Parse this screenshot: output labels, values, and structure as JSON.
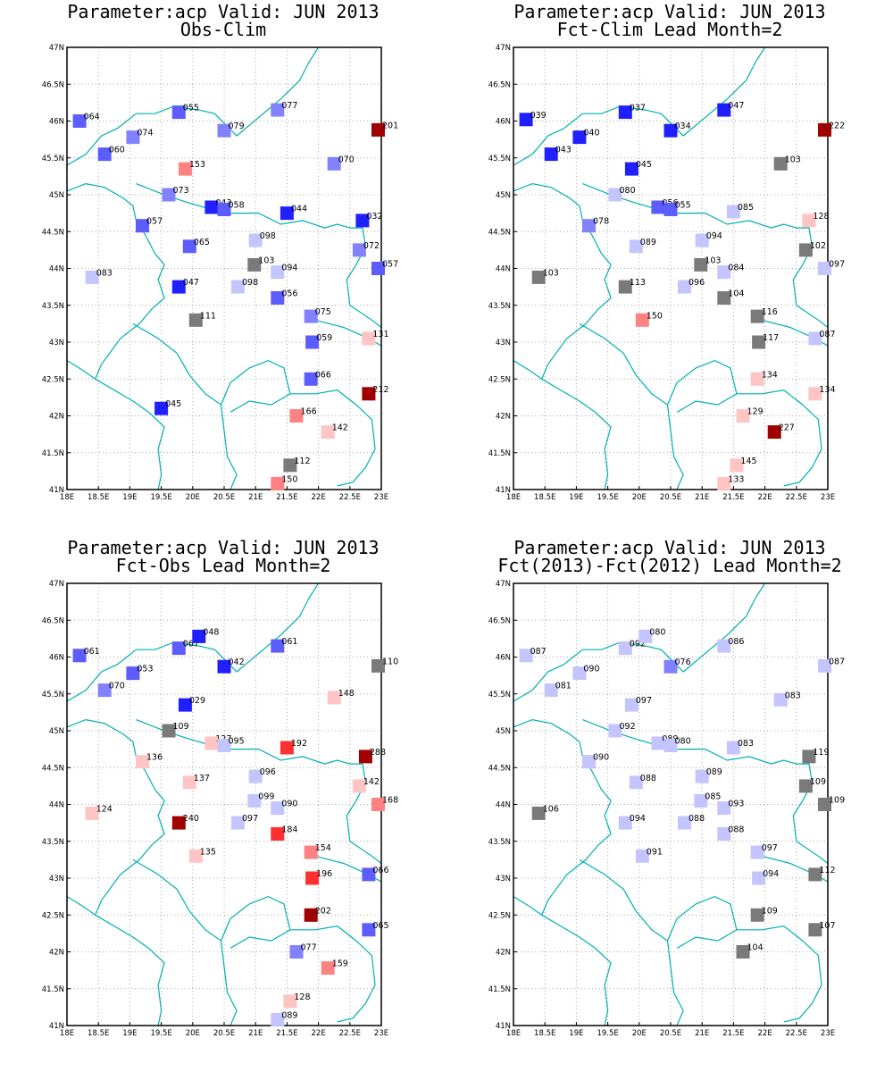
{
  "colors": {
    "border": "#00b0b0",
    "grid": "#a8a8a8",
    "gray": "#7a7a7a",
    "scale": [
      "#2020ff",
      "#5c5cff",
      "#8282ff",
      "#c4c4ff",
      "#7a7a7a",
      "#ffc4c4",
      "#ff8282",
      "#ff3030",
      "#a00000"
    ]
  },
  "axes": {
    "x_ticks": [
      "18E",
      "18.5E",
      "19E",
      "19.5E",
      "20E",
      "20.5E",
      "21E",
      "21.5E",
      "22E",
      "22.5E",
      "23E"
    ],
    "y_ticks": [
      "41N",
      "41.5N",
      "42N",
      "42.5N",
      "43N",
      "43.5N",
      "44N",
      "44.5N",
      "45N",
      "45.5N",
      "46N",
      "46.5N",
      "47N"
    ]
  },
  "panels": [
    {
      "title1": "Parameter:acp Valid: JUN 2013",
      "title2": "Obs-Clim",
      "stations": [
        {
          "lon": 18.2,
          "lat": 46.0,
          "label": "064"
        },
        {
          "lon": 18.6,
          "lat": 45.55,
          "label": "060"
        },
        {
          "lon": 19.05,
          "lat": 45.78,
          "label": "074"
        },
        {
          "lon": 19.78,
          "lat": 46.12,
          "label": "055"
        },
        {
          "lon": 20.5,
          "lat": 45.87,
          "label": "079"
        },
        {
          "lon": 21.35,
          "lat": 46.15,
          "label": "077"
        },
        {
          "lon": 22.95,
          "lat": 45.88,
          "label": "201"
        },
        {
          "lon": 19.88,
          "lat": 45.35,
          "label": "153"
        },
        {
          "lon": 22.25,
          "lat": 45.42,
          "label": "070"
        },
        {
          "lon": 19.62,
          "lat": 45.0,
          "label": "073"
        },
        {
          "lon": 20.3,
          "lat": 44.83,
          "label": "043"
        },
        {
          "lon": 20.5,
          "lat": 44.8,
          "label": "058"
        },
        {
          "lon": 21.5,
          "lat": 44.75,
          "label": "044"
        },
        {
          "lon": 22.7,
          "lat": 44.65,
          "label": "032"
        },
        {
          "lon": 19.2,
          "lat": 44.58,
          "label": "057"
        },
        {
          "lon": 19.95,
          "lat": 44.3,
          "label": "065"
        },
        {
          "lon": 21.0,
          "lat": 44.38,
          "label": "098"
        },
        {
          "lon": 22.65,
          "lat": 44.25,
          "label": "072"
        },
        {
          "lon": 22.95,
          "lat": 44.0,
          "label": "057"
        },
        {
          "lon": 18.4,
          "lat": 43.88,
          "label": "083"
        },
        {
          "lon": 20.98,
          "lat": 44.05,
          "label": "103"
        },
        {
          "lon": 21.35,
          "lat": 43.95,
          "label": "094"
        },
        {
          "lon": 19.78,
          "lat": 43.75,
          "label": "047"
        },
        {
          "lon": 20.72,
          "lat": 43.75,
          "label": "098"
        },
        {
          "lon": 21.35,
          "lat": 43.6,
          "label": "056"
        },
        {
          "lon": 20.05,
          "lat": 43.3,
          "label": "111"
        },
        {
          "lon": 21.88,
          "lat": 43.35,
          "label": "075"
        },
        {
          "lon": 21.9,
          "lat": 43.0,
          "label": "059"
        },
        {
          "lon": 22.8,
          "lat": 43.05,
          "label": "131"
        },
        {
          "lon": 21.88,
          "lat": 42.5,
          "label": "066"
        },
        {
          "lon": 22.8,
          "lat": 42.3,
          "label": "212"
        },
        {
          "lon": 19.5,
          "lat": 42.1,
          "label": "045"
        },
        {
          "lon": 21.65,
          "lat": 42.0,
          "label": "166"
        },
        {
          "lon": 22.15,
          "lat": 41.78,
          "label": "142"
        },
        {
          "lon": 21.55,
          "lat": 41.33,
          "label": "112"
        },
        {
          "lon": 21.35,
          "lat": 41.08,
          "label": "150"
        }
      ]
    },
    {
      "title1": "Parameter:acp Valid: JUN 2013",
      "title2": "Fct-Clim Lead Month=2",
      "stations": [
        {
          "lon": 18.2,
          "lat": 46.02,
          "label": "039"
        },
        {
          "lon": 18.6,
          "lat": 45.55,
          "label": "043"
        },
        {
          "lon": 19.05,
          "lat": 45.78,
          "label": "040"
        },
        {
          "lon": 19.78,
          "lat": 46.12,
          "label": "037"
        },
        {
          "lon": 20.5,
          "lat": 45.87,
          "label": "034"
        },
        {
          "lon": 21.35,
          "lat": 46.15,
          "label": "047"
        },
        {
          "lon": 22.95,
          "lat": 45.88,
          "label": "222"
        },
        {
          "lon": 19.88,
          "lat": 45.35,
          "label": "045"
        },
        {
          "lon": 22.25,
          "lat": 45.42,
          "label": "103"
        },
        {
          "lon": 19.62,
          "lat": 45.0,
          "label": "080"
        },
        {
          "lon": 20.3,
          "lat": 44.83,
          "label": "056"
        },
        {
          "lon": 20.5,
          "lat": 44.8,
          "label": "055"
        },
        {
          "lon": 21.5,
          "lat": 44.77,
          "label": "085"
        },
        {
          "lon": 22.7,
          "lat": 44.65,
          "label": "128"
        },
        {
          "lon": 19.2,
          "lat": 44.58,
          "label": "078"
        },
        {
          "lon": 19.95,
          "lat": 44.3,
          "label": "089"
        },
        {
          "lon": 21.0,
          "lat": 44.38,
          "label": "094"
        },
        {
          "lon": 22.65,
          "lat": 44.25,
          "label": "102"
        },
        {
          "lon": 22.95,
          "lat": 44.0,
          "label": "097"
        },
        {
          "lon": 18.4,
          "lat": 43.88,
          "label": "103"
        },
        {
          "lon": 20.98,
          "lat": 44.05,
          "label": "103"
        },
        {
          "lon": 21.35,
          "lat": 43.95,
          "label": "084"
        },
        {
          "lon": 19.78,
          "lat": 43.75,
          "label": "113"
        },
        {
          "lon": 20.72,
          "lat": 43.75,
          "label": "096"
        },
        {
          "lon": 21.35,
          "lat": 43.6,
          "label": "104"
        },
        {
          "lon": 20.05,
          "lat": 43.3,
          "label": "150"
        },
        {
          "lon": 21.88,
          "lat": 43.35,
          "label": "116"
        },
        {
          "lon": 21.9,
          "lat": 43.0,
          "label": "117"
        },
        {
          "lon": 22.8,
          "lat": 43.05,
          "label": "087"
        },
        {
          "lon": 21.88,
          "lat": 42.5,
          "label": "134"
        },
        {
          "lon": 22.8,
          "lat": 42.3,
          "label": "134"
        },
        {
          "lon": 21.65,
          "lat": 42.0,
          "label": "129"
        },
        {
          "lon": 22.15,
          "lat": 41.78,
          "label": "227"
        },
        {
          "lon": 21.55,
          "lat": 41.33,
          "label": "145"
        },
        {
          "lon": 21.35,
          "lat": 41.08,
          "label": "133"
        }
      ]
    },
    {
      "title1": "Parameter:acp Valid: JUN 2013",
      "title2": "Fct-Obs Lead Month=2",
      "stations": [
        {
          "lon": 18.2,
          "lat": 46.02,
          "label": "061"
        },
        {
          "lon": 18.6,
          "lat": 45.55,
          "label": "070"
        },
        {
          "lon": 19.05,
          "lat": 45.78,
          "label": "053"
        },
        {
          "lon": 19.78,
          "lat": 46.12,
          "label": "067"
        },
        {
          "lon": 20.1,
          "lat": 46.28,
          "label": "048"
        },
        {
          "lon": 20.5,
          "lat": 45.87,
          "label": "042"
        },
        {
          "lon": 21.35,
          "lat": 46.15,
          "label": "061"
        },
        {
          "lon": 22.95,
          "lat": 45.88,
          "label": "110"
        },
        {
          "lon": 19.88,
          "lat": 45.35,
          "label": "029"
        },
        {
          "lon": 22.25,
          "lat": 45.45,
          "label": "148"
        },
        {
          "lon": 19.62,
          "lat": 45.0,
          "label": "109"
        },
        {
          "lon": 20.3,
          "lat": 44.83,
          "label": "127"
        },
        {
          "lon": 20.5,
          "lat": 44.8,
          "label": "095"
        },
        {
          "lon": 21.5,
          "lat": 44.77,
          "label": "192"
        },
        {
          "lon": 22.75,
          "lat": 44.65,
          "label": "288"
        },
        {
          "lon": 19.2,
          "lat": 44.58,
          "label": "136"
        },
        {
          "lon": 19.95,
          "lat": 44.3,
          "label": "137"
        },
        {
          "lon": 21.0,
          "lat": 44.38,
          "label": "096"
        },
        {
          "lon": 22.65,
          "lat": 44.25,
          "label": "142"
        },
        {
          "lon": 22.95,
          "lat": 44.0,
          "label": "168"
        },
        {
          "lon": 18.4,
          "lat": 43.88,
          "label": "124"
        },
        {
          "lon": 20.98,
          "lat": 44.05,
          "label": "099"
        },
        {
          "lon": 21.35,
          "lat": 43.95,
          "label": "090"
        },
        {
          "lon": 19.78,
          "lat": 43.75,
          "label": "240"
        },
        {
          "lon": 20.72,
          "lat": 43.75,
          "label": "097"
        },
        {
          "lon": 21.35,
          "lat": 43.6,
          "label": "184"
        },
        {
          "lon": 20.05,
          "lat": 43.3,
          "label": "135"
        },
        {
          "lon": 21.88,
          "lat": 43.35,
          "label": "154"
        },
        {
          "lon": 21.9,
          "lat": 43.0,
          "label": "196"
        },
        {
          "lon": 22.8,
          "lat": 43.05,
          "label": "066"
        },
        {
          "lon": 21.88,
          "lat": 42.5,
          "label": "202"
        },
        {
          "lon": 22.8,
          "lat": 42.3,
          "label": "065"
        },
        {
          "lon": 21.65,
          "lat": 42.0,
          "label": "077"
        },
        {
          "lon": 22.15,
          "lat": 41.78,
          "label": "159"
        },
        {
          "lon": 21.55,
          "lat": 41.33,
          "label": "128"
        },
        {
          "lon": 21.35,
          "lat": 41.08,
          "label": "089"
        }
      ]
    },
    {
      "title1": "Parameter:acp Valid: JUN 2013",
      "title2": "Fct(2013)-Fct(2012) Lead Month=2",
      "stations": [
        {
          "lon": 18.2,
          "lat": 46.02,
          "label": "087"
        },
        {
          "lon": 18.6,
          "lat": 45.55,
          "label": "081"
        },
        {
          "lon": 19.05,
          "lat": 45.78,
          "label": "090"
        },
        {
          "lon": 19.78,
          "lat": 46.12,
          "label": "092"
        },
        {
          "lon": 20.1,
          "lat": 46.28,
          "label": "080"
        },
        {
          "lon": 20.5,
          "lat": 45.87,
          "label": "076"
        },
        {
          "lon": 21.35,
          "lat": 46.15,
          "label": "086"
        },
        {
          "lon": 22.95,
          "lat": 45.88,
          "label": "087"
        },
        {
          "lon": 19.88,
          "lat": 45.35,
          "label": "097"
        },
        {
          "lon": 22.25,
          "lat": 45.42,
          "label": "083"
        },
        {
          "lon": 19.62,
          "lat": 45.0,
          "label": "092"
        },
        {
          "lon": 20.3,
          "lat": 44.83,
          "label": "089"
        },
        {
          "lon": 20.5,
          "lat": 44.8,
          "label": "080"
        },
        {
          "lon": 21.5,
          "lat": 44.77,
          "label": "083"
        },
        {
          "lon": 22.7,
          "lat": 44.65,
          "label": "119"
        },
        {
          "lon": 19.2,
          "lat": 44.58,
          "label": "090"
        },
        {
          "lon": 19.95,
          "lat": 44.3,
          "label": "088"
        },
        {
          "lon": 21.0,
          "lat": 44.38,
          "label": "089"
        },
        {
          "lon": 22.65,
          "lat": 44.25,
          "label": "109"
        },
        {
          "lon": 22.95,
          "lat": 44.0,
          "label": "109"
        },
        {
          "lon": 18.4,
          "lat": 43.88,
          "label": "106"
        },
        {
          "lon": 20.98,
          "lat": 44.05,
          "label": "085"
        },
        {
          "lon": 21.35,
          "lat": 43.95,
          "label": "093"
        },
        {
          "lon": 19.78,
          "lat": 43.75,
          "label": "094"
        },
        {
          "lon": 20.72,
          "lat": 43.75,
          "label": "088"
        },
        {
          "lon": 21.35,
          "lat": 43.6,
          "label": "088"
        },
        {
          "lon": 20.05,
          "lat": 43.3,
          "label": "091"
        },
        {
          "lon": 21.88,
          "lat": 43.35,
          "label": "097"
        },
        {
          "lon": 21.9,
          "lat": 43.0,
          "label": "094"
        },
        {
          "lon": 22.8,
          "lat": 43.05,
          "label": "112"
        },
        {
          "lon": 21.88,
          "lat": 42.5,
          "label": "109"
        },
        {
          "lon": 22.8,
          "lat": 42.3,
          "label": "107"
        },
        {
          "lon": 21.65,
          "lat": 42.0,
          "label": "104"
        }
      ]
    }
  ]
}
